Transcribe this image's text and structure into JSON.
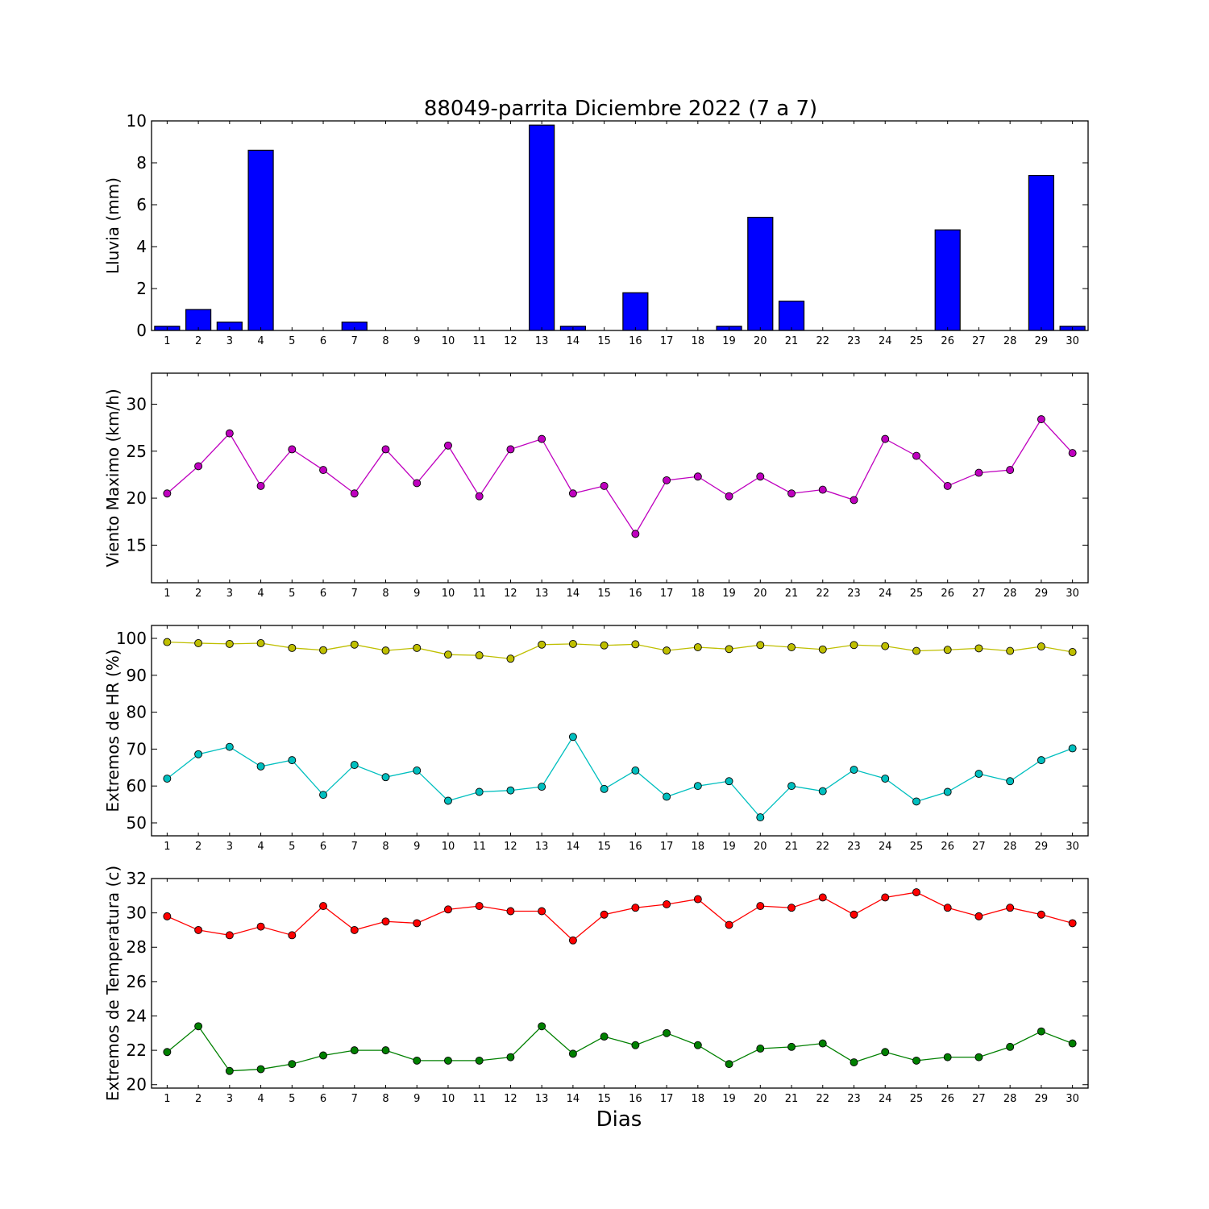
{
  "figure": {
    "title": "88049-parrita Diciembre 2022  (7 a 7)",
    "xlabel": "Dias"
  },
  "chart_data": [
    {
      "type": "bar",
      "ylabel": "Lluvia (mm)",
      "ylim": [
        0,
        10
      ],
      "yticks": [
        0,
        2,
        4,
        6,
        8,
        10
      ],
      "xlim": [
        0.5,
        30.5
      ],
      "categories": [
        1,
        2,
        3,
        4,
        5,
        6,
        7,
        8,
        9,
        10,
        11,
        12,
        13,
        14,
        15,
        16,
        17,
        18,
        19,
        20,
        21,
        22,
        23,
        24,
        25,
        26,
        27,
        28,
        29,
        30
      ],
      "color": "#0000ff",
      "values": [
        0.2,
        1.0,
        0.4,
        8.6,
        0.0,
        0.0,
        0.4,
        0.0,
        0.0,
        0.0,
        0.0,
        0.0,
        9.8,
        0.2,
        0.0,
        1.8,
        0.0,
        0.0,
        0.2,
        5.4,
        1.4,
        0.0,
        0.0,
        0.0,
        0.0,
        4.8,
        0.0,
        0.0,
        7.4,
        0.2
      ]
    },
    {
      "type": "line",
      "ylabel": "Viento Maximo (km/h)",
      "ylim": [
        11,
        33.3
      ],
      "yticks": [
        15,
        20,
        25,
        30
      ],
      "xlim": [
        0.5,
        30.5
      ],
      "x": [
        1,
        2,
        3,
        4,
        5,
        6,
        7,
        8,
        9,
        10,
        11,
        12,
        13,
        14,
        15,
        16,
        17,
        18,
        19,
        20,
        21,
        22,
        23,
        24,
        25,
        26,
        27,
        28,
        29,
        30
      ],
      "series": [
        {
          "color": "#bf00bf",
          "values": [
            20.5,
            23.4,
            26.9,
            21.3,
            25.2,
            23.0,
            20.5,
            25.2,
            21.6,
            25.6,
            20.2,
            25.2,
            26.3,
            20.5,
            21.3,
            16.2,
            21.9,
            22.3,
            20.2,
            22.3,
            20.5,
            20.9,
            19.8,
            26.3,
            24.5,
            21.3,
            22.7,
            23.0,
            28.4,
            24.8
          ]
        }
      ]
    },
    {
      "type": "line",
      "ylabel": "Extremos de HR (%)",
      "ylim": [
        46.5,
        103.5
      ],
      "yticks": [
        50,
        60,
        70,
        80,
        90,
        100
      ],
      "xlim": [
        0.5,
        30.5
      ],
      "x": [
        1,
        2,
        3,
        4,
        5,
        6,
        7,
        8,
        9,
        10,
        11,
        12,
        13,
        14,
        15,
        16,
        17,
        18,
        19,
        20,
        21,
        22,
        23,
        24,
        25,
        26,
        27,
        28,
        29,
        30
      ],
      "series": [
        {
          "color": "#bfbf00",
          "values": [
            99.0,
            98.7,
            98.5,
            98.7,
            97.4,
            96.8,
            98.3,
            96.7,
            97.4,
            95.6,
            95.4,
            94.5,
            98.3,
            98.5,
            98.1,
            98.4,
            96.7,
            97.6,
            97.1,
            98.2,
            97.6,
            97.0,
            98.2,
            97.9,
            96.6,
            96.9,
            97.3,
            96.6,
            97.8,
            96.3
          ]
        },
        {
          "color": "#00bfbf",
          "values": [
            62.0,
            68.6,
            70.6,
            65.3,
            67.0,
            57.6,
            65.7,
            62.4,
            64.2,
            56.0,
            58.4,
            58.8,
            59.8,
            73.3,
            59.2,
            64.2,
            57.1,
            60.0,
            61.3,
            51.5,
            60.0,
            58.6,
            64.4,
            62.0,
            55.8,
            58.4,
            63.3,
            61.3,
            67.0,
            70.2
          ]
        }
      ]
    },
    {
      "type": "line",
      "ylabel": "Extremos de Temperatura (c)",
      "ylim": [
        19.8,
        32.0
      ],
      "yticks": [
        20,
        22,
        24,
        26,
        28,
        30,
        32
      ],
      "xlim": [
        0.5,
        30.5
      ],
      "x": [
        1,
        2,
        3,
        4,
        5,
        6,
        7,
        8,
        9,
        10,
        11,
        12,
        13,
        14,
        15,
        16,
        17,
        18,
        19,
        20,
        21,
        22,
        23,
        24,
        25,
        26,
        27,
        28,
        29,
        30
      ],
      "series": [
        {
          "color": "#ff0000",
          "values": [
            29.8,
            29.0,
            28.7,
            29.2,
            28.7,
            30.4,
            29.0,
            29.5,
            29.4,
            30.2,
            30.4,
            30.1,
            30.1,
            28.4,
            29.9,
            30.3,
            30.5,
            30.8,
            29.3,
            30.4,
            30.3,
            30.9,
            29.9,
            30.9,
            31.2,
            30.3,
            29.8,
            30.3,
            29.9,
            29.4
          ]
        },
        {
          "color": "#008000",
          "values": [
            21.9,
            23.4,
            20.8,
            20.9,
            21.2,
            21.7,
            22.0,
            22.0,
            21.4,
            21.4,
            21.4,
            21.6,
            23.4,
            21.8,
            22.8,
            22.3,
            23.0,
            22.3,
            21.2,
            22.1,
            22.2,
            22.4,
            21.3,
            21.9,
            21.4,
            21.6,
            21.6,
            22.2,
            23.1,
            22.4
          ]
        }
      ]
    }
  ]
}
